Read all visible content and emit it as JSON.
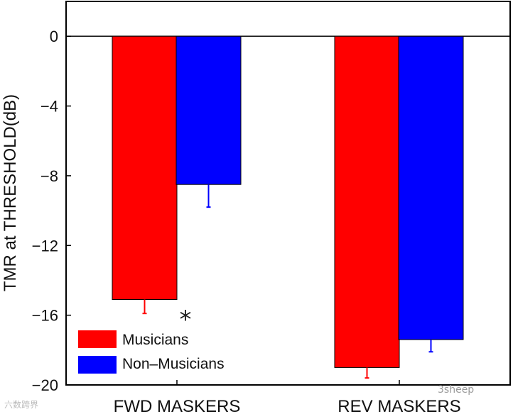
{
  "chart_data": {
    "type": "bar",
    "categories": [
      "FWD MASKERS",
      "REV MASKERS"
    ],
    "series": [
      {
        "name": "Musicians",
        "color": "#ff0000",
        "values": [
          -15.1,
          -19.0
        ],
        "errors": [
          0.8,
          0.6
        ]
      },
      {
        "name": "Non–Musicians",
        "color": "#0000ff",
        "values": [
          -8.5,
          -17.4
        ],
        "errors": [
          1.3,
          0.7
        ]
      }
    ],
    "ylabel": "TMR at THRESHOLD(dB)",
    "xlabel": "",
    "ylim": [
      -20,
      2
    ],
    "yticks": [
      0,
      -4,
      -8,
      -12,
      -16,
      -20
    ],
    "ytick_labels": [
      "0",
      "−4",
      "−8",
      "−12",
      "−16",
      "−20"
    ],
    "grid": false,
    "legend": "bottom-left",
    "annotations": [
      {
        "text": "*",
        "category": "FWD MASKERS"
      }
    ]
  },
  "watermarks": {
    "left": "六数跨界",
    "right": "3sheep"
  }
}
